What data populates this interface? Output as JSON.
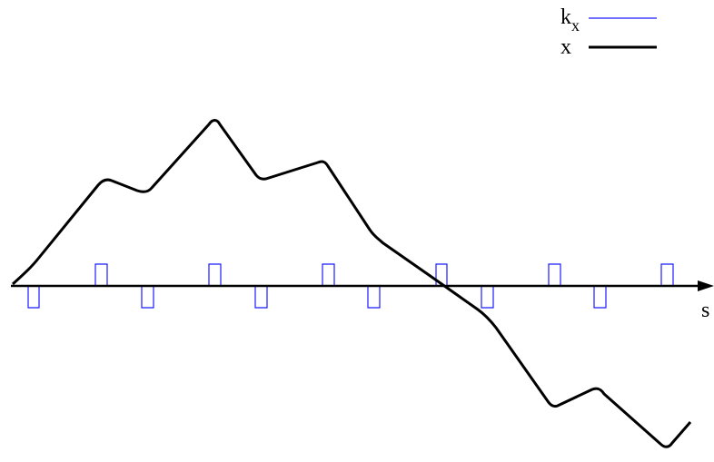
{
  "diagram": {
    "axis_label": "s",
    "legend": {
      "items": [
        {
          "name": "k",
          "subscript": "x",
          "color": "#1a1aff"
        },
        {
          "name": "x",
          "subscript": "",
          "color": "#000000"
        }
      ]
    },
    "colors": {
      "kx": "#1a1aff",
      "x": "#000000",
      "axis": "#000000"
    }
  }
}
